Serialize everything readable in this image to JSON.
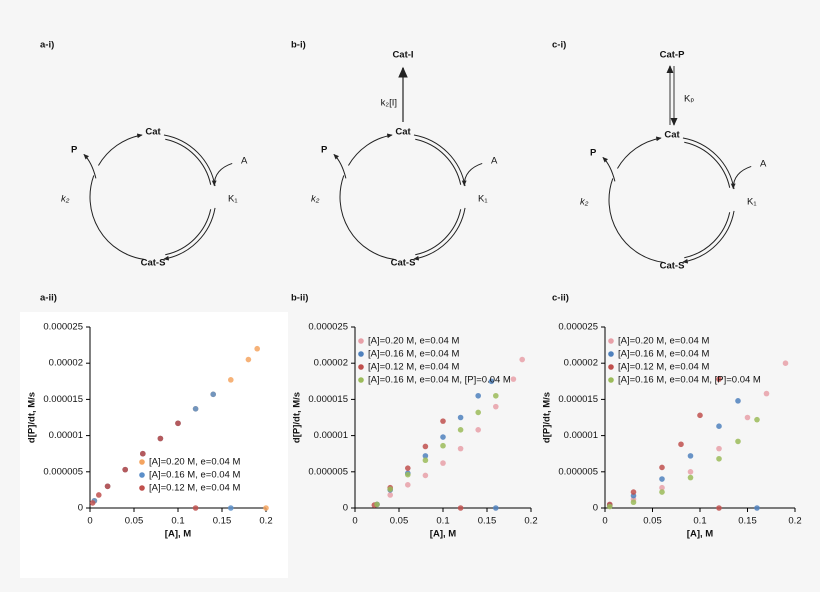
{
  "diagrams": [
    {
      "panel": "a-i)",
      "top": "Cat",
      "bottom": "Cat-S",
      "product": "P",
      "substrate": "A",
      "k": "k₂",
      "K": "K₁"
    },
    {
      "panel": "b-i)",
      "top": "Cat",
      "bottom": "Cat-S",
      "product": "P",
      "substrate": "A",
      "k": "k₂",
      "K": "K₁",
      "side": "Cat-I",
      "side_rate": "k₂[I]"
    },
    {
      "panel": "c-i)",
      "top": "Cat",
      "bottom": "Cat-S",
      "product": "P",
      "substrate": "A",
      "k": "k₂",
      "K": "K₁",
      "side": "Cat-P",
      "side_rate": "Kₚ"
    }
  ],
  "chart_data": [
    {
      "type": "scatter",
      "panel": "a-ii)",
      "xlabel": "[A], M",
      "ylabel": "d[P]/dt, M/s",
      "legend": "lower right",
      "xlim": [
        0,
        0.2
      ],
      "xticks": [
        0,
        0.05,
        0.1,
        0.15,
        0.2
      ],
      "ylim": [
        0,
        2.5e-05
      ],
      "yticks": [
        0,
        5e-06,
        1e-05,
        1.5e-05,
        2e-05,
        2.5e-05
      ],
      "series": [
        {
          "name": "[A]=0.20 M, e=0.04 M",
          "color": "#f4a460",
          "x": [
            0.005,
            0.02,
            0.04,
            0.06,
            0.08,
            0.1,
            0.12,
            0.14,
            0.16,
            0.18,
            0.19,
            0.2
          ],
          "values": [
            1e-06,
            3e-06,
            5.3e-06,
            7.5e-06,
            9.6e-06,
            1.17e-05,
            1.37e-05,
            1.57e-05,
            1.77e-05,
            2.05e-05,
            2.2e-05,
            0
          ]
        },
        {
          "name": "[A]=0.16 M, e=0.04 M",
          "color": "#5b8fc9",
          "x": [
            0.005,
            0.02,
            0.04,
            0.06,
            0.08,
            0.1,
            0.12,
            0.14,
            0.16
          ],
          "values": [
            1e-06,
            3e-06,
            5.3e-06,
            7.5e-06,
            9.6e-06,
            1.17e-05,
            1.37e-05,
            1.57e-05,
            0
          ]
        },
        {
          "name": "[A]=0.12 M, e=0.04 M",
          "color": "#c0504d",
          "x": [
            0.003,
            0.01,
            0.02,
            0.04,
            0.06,
            0.08,
            0.1,
            0.12
          ],
          "values": [
            7e-07,
            1.8e-06,
            3e-06,
            5.3e-06,
            7.5e-06,
            9.6e-06,
            1.17e-05,
            0
          ]
        }
      ]
    },
    {
      "type": "scatter",
      "panel": "b-ii)",
      "xlabel": "[A], M",
      "ylabel": "d[P]/dt, M/s",
      "legend": "upper left",
      "xlim": [
        0,
        0.2
      ],
      "xticks": [
        0,
        0.05,
        0.1,
        0.15,
        0.2
      ],
      "ylim": [
        0,
        2.5e-05
      ],
      "yticks": [
        0,
        5e-06,
        1e-05,
        1.5e-05,
        2e-05,
        2.5e-05
      ],
      "series": [
        {
          "name": "[A]=0.20 M, e=0.04 M",
          "color": "#e8a0a8",
          "x": [
            0.025,
            0.04,
            0.06,
            0.08,
            0.1,
            0.12,
            0.14,
            0.16,
            0.18,
            0.19
          ],
          "values": [
            5e-07,
            1.8e-06,
            3.2e-06,
            4.5e-06,
            6.2e-06,
            8.2e-06,
            1.08e-05,
            1.4e-05,
            1.78e-05,
            2.05e-05
          ]
        },
        {
          "name": "[A]=0.16 M, e=0.04 M",
          "color": "#4f81bd",
          "x": [
            0.025,
            0.04,
            0.06,
            0.08,
            0.1,
            0.12,
            0.14,
            0.155,
            0.16
          ],
          "values": [
            5e-07,
            2.5e-06,
            4.8e-06,
            7.2e-06,
            9.8e-06,
            1.25e-05,
            1.55e-05,
            1.75e-05,
            0
          ]
        },
        {
          "name": "[A]=0.12 M, e=0.04 M",
          "color": "#c0504d",
          "x": [
            0.022,
            0.04,
            0.06,
            0.08,
            0.1,
            0.12
          ],
          "values": [
            4e-07,
            2.8e-06,
            5.5e-06,
            8.5e-06,
            1.2e-05,
            0
          ]
        },
        {
          "name": "[A]=0.16 M, e=0.04 M, [P]=0.04 M",
          "color": "#9bbb59",
          "x": [
            0.025,
            0.04,
            0.06,
            0.08,
            0.1,
            0.12,
            0.14,
            0.16
          ],
          "values": [
            5e-07,
            2.6e-06,
            4.6e-06,
            6.6e-06,
            8.6e-06,
            1.08e-05,
            1.32e-05,
            1.55e-05
          ]
        }
      ]
    },
    {
      "type": "scatter",
      "panel": "c-ii)",
      "xlabel": "[A], M",
      "ylabel": "d[P]/dt, M/s",
      "legend": "upper left",
      "xlim": [
        0,
        0.2
      ],
      "xticks": [
        0,
        0.05,
        0.1,
        0.15,
        0.2
      ],
      "ylim": [
        0,
        2.5e-05
      ],
      "yticks": [
        0,
        5e-06,
        1e-05,
        1.5e-05,
        2e-05,
        2.5e-05
      ],
      "series": [
        {
          "name": "[A]=0.20 M, e=0.04 M",
          "color": "#e8a0a8",
          "x": [
            0.005,
            0.03,
            0.06,
            0.09,
            0.12,
            0.15,
            0.17,
            0.19
          ],
          "values": [
            3e-07,
            1.2e-06,
            2.8e-06,
            5e-06,
            8.2e-06,
            1.25e-05,
            1.58e-05,
            2e-05
          ]
        },
        {
          "name": "[A]=0.16 M, e=0.04 M",
          "color": "#4f81bd",
          "x": [
            0.005,
            0.03,
            0.06,
            0.09,
            0.12,
            0.14,
            0.16
          ],
          "values": [
            4e-07,
            1.7e-06,
            4e-06,
            7.2e-06,
            1.13e-05,
            1.48e-05,
            0
          ]
        },
        {
          "name": "[A]=0.12 M, e=0.04 M",
          "color": "#c0504d",
          "x": [
            0.005,
            0.03,
            0.06,
            0.08,
            0.1,
            0.12,
            0.12
          ],
          "values": [
            5e-07,
            2.2e-06,
            5.6e-06,
            8.8e-06,
            1.28e-05,
            1.78e-05,
            0
          ]
        },
        {
          "name": "[A]=0.16 M, e=0.04 M, [P]=0.04 M",
          "color": "#9bbb59",
          "x": [
            0.005,
            0.03,
            0.06,
            0.09,
            0.12,
            0.14,
            0.16
          ],
          "values": [
            2e-07,
            8e-07,
            2.2e-06,
            4.2e-06,
            6.8e-06,
            9.2e-06,
            1.22e-05
          ]
        }
      ]
    }
  ]
}
